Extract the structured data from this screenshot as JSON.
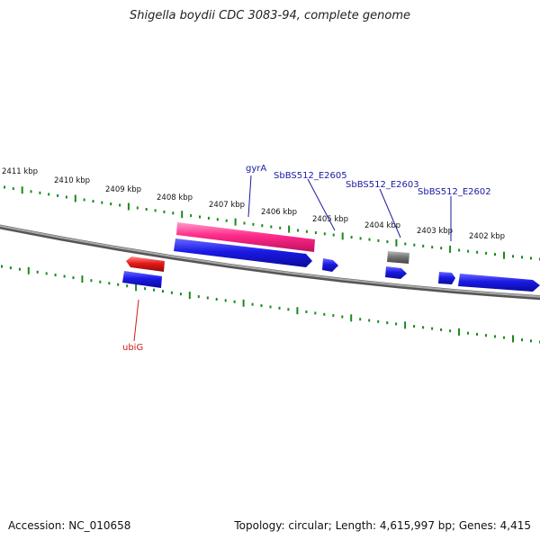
{
  "title": "Shigella boydii CDC 3083-94, complete genome",
  "footer": {
    "accession": "Accession: NC_010658",
    "topology": "Topology: circular; Length: 4,615,997 bp; Genes: 4,415"
  },
  "ruler": {
    "tick_labels": [
      "2411 kbp",
      "2410 kbp",
      "2409 kbp",
      "2408 kbp",
      "2407 kbp",
      "2406 kbp",
      "2405 kbp",
      "2404 kbp",
      "2403 kbp",
      "2402 kbp"
    ]
  },
  "gene_labels": {
    "gyrA": "gyrA",
    "e2605": "SbBS512_E2605",
    "e2603": "SbBS512_E2603",
    "e2602": "SbBS512_E2602",
    "ubiG": "ubiG"
  },
  "colors": {
    "backbone": "#8a8a8a",
    "tick": "#1a8a1a",
    "gene_blue": "#1a1ae6",
    "gene_pink": "#ff2a8a",
    "gene_red": "#e61a1a",
    "gene_gray": "#777777",
    "label_blue": "#1a1aa0",
    "label_red": "#cc1a1a"
  }
}
